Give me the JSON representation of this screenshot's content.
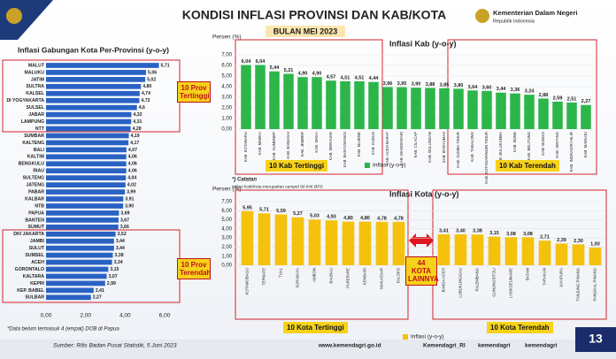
{
  "header": {
    "title": "KONDISI INFLASI PROVINSI DAN KAB/KOTA",
    "subtitle": "BULAN MEI 2023",
    "org": "Kementerian Dalam Negeri",
    "org_sub": "Republik Indonesia"
  },
  "footer": {
    "source": "Sumber: Rilis Badan Pusat Statistik, 5 Juni 2023",
    "web": "www.kemendagri.go.id",
    "twitter": "Kemendagri_RI",
    "instagram": "kemendagri",
    "youtube": "kemendagri",
    "page": "13"
  },
  "chart_data": [
    {
      "type": "bar",
      "orientation": "horizontal",
      "title": "Inflasi Gabungan Kota Per-Provinsi (y-o-y)",
      "color": "#2a62c4",
      "grid": false,
      "categories": [
        "MALUT",
        "MALUKU",
        "JATIM",
        "SULTRA",
        "KALSEL",
        "DI YOGYAKARTA",
        "SULSEL",
        "JABAR",
        "LAMPUNG",
        "NTT",
        "SUMBAR",
        "KALTENG",
        "BALI",
        "KALTIM",
        "BENGKULU",
        "RIAU",
        "SULTENG",
        "JATENG",
        "PABAR",
        "KALBAR",
        "NTB",
        "PAPUA",
        "BANTEN",
        "SUMUT",
        "DKI JAKARTA",
        "JAMBI",
        "SULUT",
        "SUMSEL",
        "ACEH",
        "GORONTALO",
        "KALTARA",
        "KEPRI",
        "KEP. BABEL",
        "SULBAR"
      ],
      "values": [
        5.71,
        5.06,
        5.02,
        4.8,
        4.74,
        4.72,
        4.6,
        4.32,
        4.31,
        4.28,
        4.19,
        4.17,
        4.07,
        4.06,
        4.06,
        4.06,
        4.04,
        4.02,
        3.99,
        3.91,
        3.9,
        3.69,
        3.67,
        3.66,
        3.52,
        3.44,
        3.44,
        3.38,
        3.34,
        3.15,
        3.07,
        2.99,
        2.41,
        2.27
      ],
      "value_labels": [
        "5,71",
        "5,06",
        "5,02",
        "4,80",
        "4,74",
        "4,72",
        "4,6",
        "4,32",
        "4,31",
        "4,28",
        "4,19",
        "4,17",
        "4,07",
        "4,06",
        "4,06",
        "4,06",
        "4,04",
        "4,02",
        "3,99",
        "3,91",
        "3,90",
        "3,69",
        "3,67",
        "3,66",
        "3,52",
        "3,44",
        "3,44",
        "3,38",
        "3,34",
        "3,15",
        "3,07",
        "2,99",
        "2,41",
        "2,27"
      ],
      "xlim": [
        0,
        6
      ],
      "xticks": [
        {
          "value": 0,
          "label": "0,00"
        },
        {
          "value": 2,
          "label": "2,00"
        },
        {
          "value": 4,
          "label": "4,00"
        },
        {
          "value": 6,
          "label": "6,00"
        }
      ],
      "annotations": [
        "10 Prov Tertinggi",
        "10 Prov Terendah",
        "*Data belum termasuk 4 (empat) DOB di Papua"
      ]
    },
    {
      "type": "bar",
      "orientation": "vertical",
      "title": "Inflasi Kab (y-o-y)",
      "ylabel": "Persen (%)",
      "grid": true,
      "categories": [
        "KAB. KOTABARU",
        "KAB. MIMIKA",
        "KAB. SUMENEP",
        "KAB. BANGGAI",
        "KAB. JEMBER",
        "KAB. SIKKA",
        "KAB. MERAUKE",
        "KAB. BANYUWANGI",
        "KAB. MAJENE",
        "KAB. KUDUS",
        "KAB. ACEH BARAT",
        "KAB. MANOKWARI",
        "KAB. CILACAP",
        "KAB. BULUNGAN",
        "KAB. BANYUMAS",
        "KAB. SUMBA TIMUR",
        "KAB. TABALONG",
        "KAB. KOTAWARINGIN TIMUR",
        "KAB. BULUKUMBA",
        "KAB. BONE",
        "KAB. BELITUNG",
        "KAB. BUNGO",
        "KAB. SINTANG",
        "KAB. INDRAGIRI HILIR",
        "KAB. MAMUJU"
      ],
      "series": [
        {
          "name": "Inflasi (y-o-y)",
          "color": "#2cb64a",
          "values": [
            6.04,
            6.04,
            5.44,
            5.21,
            4.9,
            4.9,
            4.57,
            4.51,
            4.51,
            4.44,
            3.96,
            3.95,
            3.9,
            3.88,
            3.85,
            3.8,
            3.64,
            3.6,
            3.44,
            3.36,
            3.24,
            2.88,
            2.59,
            2.51,
            2.27
          ],
          "value_labels": [
            "6,04",
            "6,04",
            "5,44",
            "5,21",
            "4,90",
            "4,90",
            "4,57",
            "4,51",
            "4,51",
            "4,44",
            "3,96",
            "3,95",
            "3,90",
            "3,88",
            "3,85",
            "3,80",
            "3,64",
            "3,60",
            "3,44",
            "3,36",
            "3,24",
            "2,88",
            "2,59",
            "2,51",
            "2,27"
          ]
        }
      ],
      "ylim": [
        0,
        7
      ],
      "yticks": [
        {
          "value": 0,
          "label": "0,00"
        },
        {
          "value": 1,
          "label": "1,00"
        },
        {
          "value": 2,
          "label": "2,00"
        },
        {
          "value": 3,
          "label": "3,00"
        },
        {
          "value": 4,
          "label": "4,00"
        },
        {
          "value": 5,
          "label": "5,00"
        },
        {
          "value": 6,
          "label": "6,00"
        },
        {
          "value": 7,
          "label": "7,00"
        }
      ],
      "annotations": [
        "10 Kab Tertinggi",
        "10 Kab Terendah"
      ]
    },
    {
      "type": "bar",
      "orientation": "vertical",
      "title": "Inflasi Kota (y-o-y)",
      "ylabel": "Persen (%)",
      "grid": true,
      "categories": [
        "KOTAMOBAGU",
        "TERNATE",
        "TUAL",
        "SURABAYA",
        "AMBON",
        "BAUBAU",
        "PAREPARE",
        "KENDARI",
        "MAKASSAR",
        "PALOPO",
        "BANDA ACEH",
        "LUBUKLINGGAU",
        "PALEMBANG",
        "GUNUNGSITOLI",
        "LHOKSEUMAWE",
        "BATAM",
        "TARAKAN",
        "JAYAPURA",
        "TANJUNG PINANG",
        "PANGKAL PINANG"
      ],
      "series": [
        {
          "name": "Inflasi (y-o-y)",
          "color": "#f4c20d",
          "values": [
            5.95,
            5.71,
            5.59,
            5.27,
            5.03,
            4.93,
            4.8,
            4.8,
            4.78,
            4.78,
            3.41,
            3.4,
            3.38,
            3.15,
            3.08,
            3.08,
            2.71,
            2.39,
            2.3,
            1.93
          ],
          "value_labels": [
            "5,95",
            "5,71",
            "5,59",
            "5,27",
            "5,03",
            "4,93",
            "4,80",
            "4,80",
            "4,78",
            "4,78",
            "3,41",
            "3,40",
            "3,38",
            "3,15",
            "3,08",
            "3,08",
            "2,71",
            "2,39",
            "2,30",
            "1,93"
          ]
        }
      ],
      "ylim": [
        0,
        7
      ],
      "yticks": [
        {
          "value": 0,
          "label": "0,00"
        },
        {
          "value": 1,
          "label": "1,00"
        },
        {
          "value": 2,
          "label": "2,00"
        },
        {
          "value": 3,
          "label": "3,00"
        },
        {
          "value": 4,
          "label": "4,00"
        },
        {
          "value": 5,
          "label": "5,00"
        },
        {
          "value": 6,
          "label": "6,00"
        },
        {
          "value": 7,
          "label": "7,00"
        }
      ],
      "annotations": [
        "10 Kota Tertinggi",
        "10 Kota Terendah",
        "44 KOTA LAINNYA",
        "*) Catatan",
        "Inflasi Kab/Kota merupakan sampel 90 IHK BPS"
      ]
    }
  ]
}
